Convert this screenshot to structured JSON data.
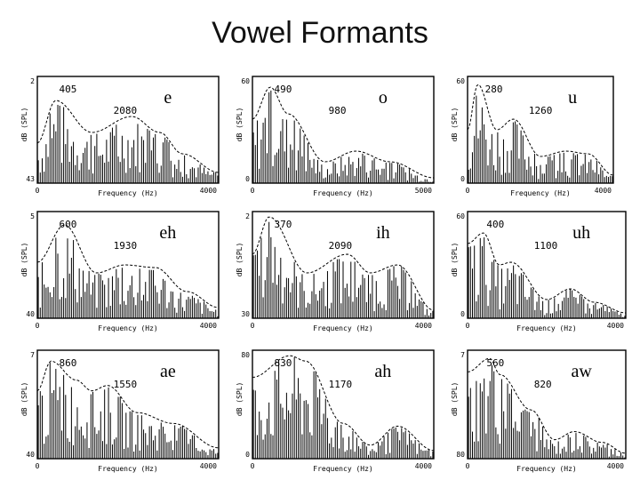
{
  "slide": {
    "title": "Vowel Formants",
    "colors": {
      "foreground": "#000000",
      "background": "#ffffff"
    }
  },
  "chart_data": [
    {
      "type": "line",
      "title": "e",
      "xlabel": "Frequency (Hz)",
      "ylabel": "dB (SPL)",
      "x_ticks": [
        "0",
        "4000"
      ],
      "y_ticks": [
        "43",
        "2"
      ],
      "xlim": [
        0,
        4000
      ],
      "formant_labels": [
        "405",
        "2080"
      ],
      "series": [
        {
          "x": [
            0,
            405,
            1200,
            2080,
            2700,
            3200,
            4000
          ],
          "y": [
            30,
            62,
            38,
            50,
            38,
            22,
            8
          ]
        }
      ]
    },
    {
      "type": "line",
      "title": "o",
      "xlabel": "Frequency (Hz)",
      "ylabel": "dB (SPL)",
      "x_ticks": [
        "0",
        "5000"
      ],
      "y_ticks": [
        "0",
        "60"
      ],
      "xlim": [
        0,
        5000
      ],
      "formant_labels": [
        "490",
        "980"
      ],
      "series": [
        {
          "x": [
            0,
            490,
            980,
            2000,
            2850,
            3800,
            5000
          ],
          "y": [
            48,
            72,
            52,
            16,
            24,
            16,
            4
          ]
        }
      ]
    },
    {
      "type": "line",
      "title": "u",
      "xlabel": "Frequency (Hz)",
      "ylabel": "dB (SPL)",
      "x_ticks": [
        "0",
        "4000"
      ],
      "y_ticks": [
        "0",
        "60"
      ],
      "xlim": [
        0,
        4000
      ],
      "formant_labels": [
        "280",
        "1260"
      ],
      "series": [
        {
          "x": [
            0,
            280,
            800,
            1260,
            2000,
            2700,
            3300,
            4000
          ],
          "y": [
            40,
            74,
            40,
            48,
            20,
            24,
            22,
            6
          ]
        }
      ]
    },
    {
      "type": "line",
      "title": "eh",
      "xlabel": "Frequency (Hz)",
      "ylabel": "dB (SPL)",
      "x_ticks": [
        "0",
        "4000"
      ],
      "y_ticks": [
        "40",
        "5"
      ],
      "xlim": [
        0,
        4000
      ],
      "formant_labels": [
        "600",
        "1930"
      ],
      "series": [
        {
          "x": [
            0,
            600,
            1300,
            1930,
            2600,
            3300,
            4000
          ],
          "y": [
            42,
            70,
            34,
            40,
            38,
            20,
            8
          ]
        }
      ]
    },
    {
      "type": "line",
      "title": "ih",
      "xlabel": "Frequency (Hz)",
      "ylabel": "dB (SPL)",
      "x_ticks": [
        "0",
        "4000"
      ],
      "y_ticks": [
        "30",
        "2"
      ],
      "xlim": [
        0,
        4000
      ],
      "formant_labels": [
        "370",
        "2090"
      ],
      "series": [
        {
          "x": [
            0,
            370,
            1200,
            2090,
            2600,
            3200,
            4000
          ],
          "y": [
            48,
            76,
            34,
            48,
            34,
            40,
            6
          ]
        }
      ]
    },
    {
      "type": "line",
      "title": "uh",
      "xlabel": "Frequency (Hz)",
      "ylabel": "dB (SPL)",
      "x_ticks": [
        "0",
        "4000"
      ],
      "y_ticks": [
        "0",
        "60"
      ],
      "xlim": [
        0,
        4000
      ],
      "formant_labels": [
        "400",
        "1100"
      ],
      "series": [
        {
          "x": [
            0,
            400,
            800,
            1100,
            2000,
            2600,
            3200,
            4000
          ],
          "y": [
            56,
            64,
            40,
            42,
            14,
            22,
            12,
            4
          ]
        }
      ]
    },
    {
      "type": "line",
      "title": "ae",
      "xlabel": "Frequency (Hz)",
      "ylabel": "dB (SPL)",
      "x_ticks": [
        "0",
        "4000"
      ],
      "y_ticks": [
        "40",
        "7"
      ],
      "xlim": [
        0,
        4000
      ],
      "formant_labels": [
        "860",
        "1550"
      ],
      "series": [
        {
          "x": [
            0,
            300,
            860,
            1200,
            1550,
            2200,
            3000,
            4000
          ],
          "y": [
            50,
            72,
            58,
            50,
            54,
            34,
            26,
            8
          ]
        }
      ]
    },
    {
      "type": "line",
      "title": "ah",
      "xlabel": "Frequency (Hz)",
      "ylabel": "dB (SPL)",
      "x_ticks": [
        "0",
        "4000"
      ],
      "y_ticks": [
        "0",
        "80"
      ],
      "xlim": [
        0,
        4000
      ],
      "formant_labels": [
        "830",
        "1170"
      ],
      "series": [
        {
          "x": [
            0,
            830,
            1170,
            2000,
            2600,
            3200,
            4000
          ],
          "y": [
            60,
            76,
            72,
            26,
            10,
            24,
            6
          ]
        }
      ]
    },
    {
      "type": "line",
      "title": "aw",
      "xlabel": "Frequency (Hz)",
      "ylabel": "dB (SPL)",
      "x_ticks": [
        "0",
        "4000"
      ],
      "y_ticks": [
        "80",
        "7"
      ],
      "xlim": [
        0,
        4000
      ],
      "formant_labels": [
        "560",
        "820"
      ],
      "series": [
        {
          "x": [
            0,
            560,
            820,
            1600,
            2200,
            2700,
            3400,
            4000
          ],
          "y": [
            64,
            74,
            62,
            36,
            14,
            20,
            12,
            4
          ]
        }
      ]
    }
  ]
}
